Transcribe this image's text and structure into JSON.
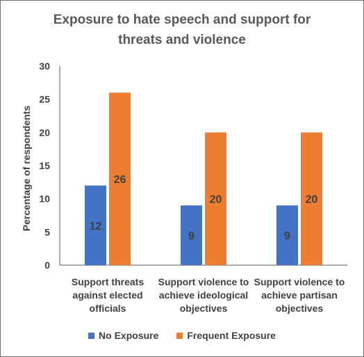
{
  "chart_data": {
    "type": "bar",
    "title_lines": [
      "Exposure to hate speech and support for",
      "threats and violence"
    ],
    "ylabel": "Percentage of respondents",
    "xlabel": "",
    "ylim": [
      0,
      30
    ],
    "yticks": [
      0,
      5,
      10,
      15,
      20,
      25,
      30
    ],
    "grid": false,
    "legend_position": "bottom",
    "categories": [
      [
        "Support threats",
        "against elected",
        "officials"
      ],
      [
        "Support violence to",
        "achieve ideological",
        "objectives"
      ],
      [
        "Support violence to",
        "achieve partisan",
        "objectives"
      ]
    ],
    "series": [
      {
        "name": "No Exposure",
        "color": "#4472C4",
        "values": [
          12,
          9,
          9
        ]
      },
      {
        "name": "Frequent Exposure",
        "color": "#ED7D31",
        "values": [
          26,
          20,
          20
        ]
      }
    ]
  }
}
